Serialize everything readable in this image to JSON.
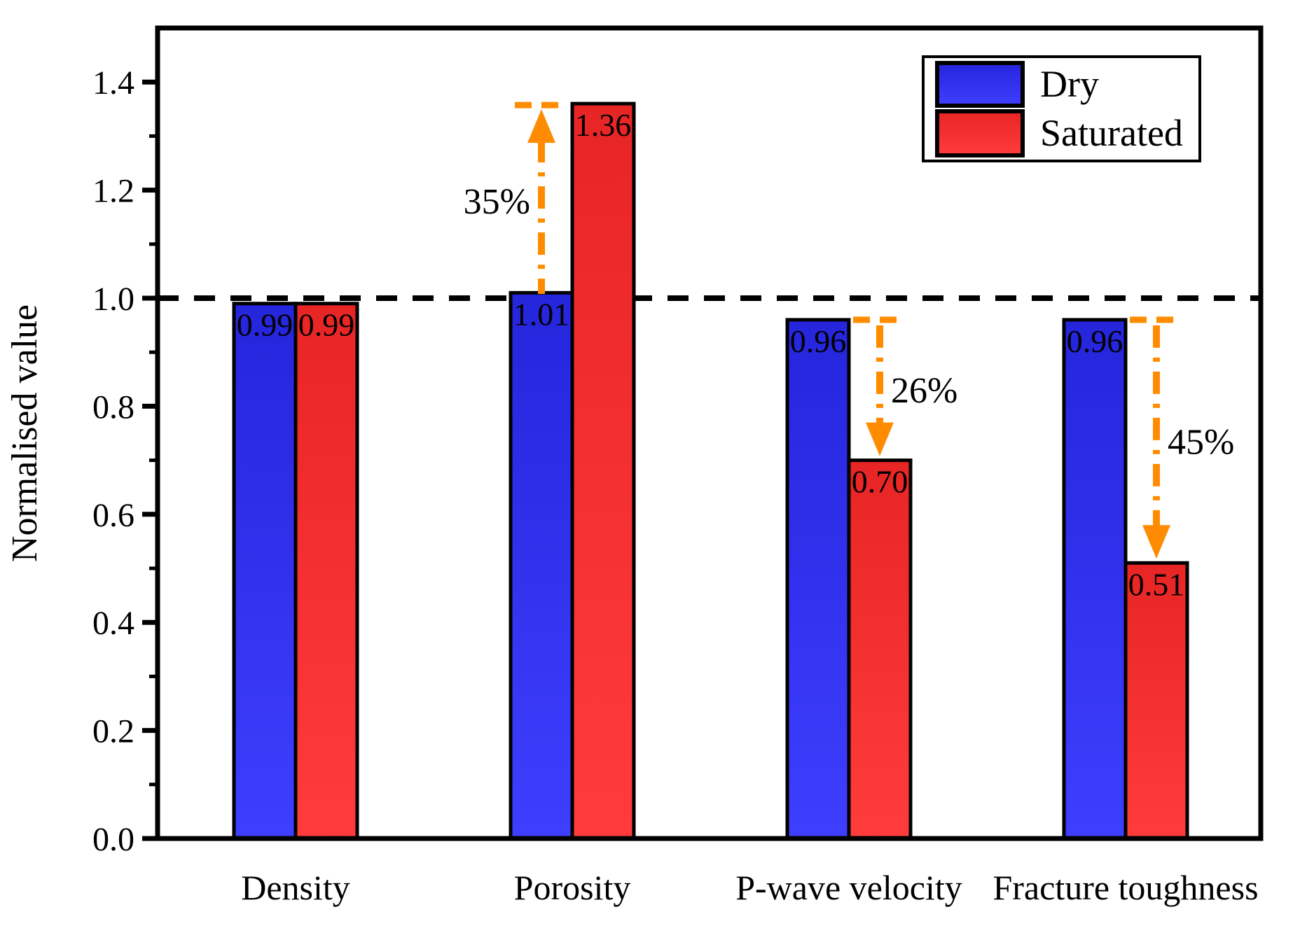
{
  "y_axis": {
    "title": "Normalised value",
    "tick_labels": [
      "0.0",
      "0.2",
      "0.4",
      "0.6",
      "0.8",
      "1.0",
      "1.2",
      "1.4"
    ],
    "min": 0.0,
    "max": 1.5,
    "major_step": 0.2,
    "minor_step": 0.1
  },
  "x_axis": {
    "categories": [
      "Density",
      "Porosity",
      "P-wave velocity",
      "Fracture toughness"
    ]
  },
  "legend": {
    "entries": [
      {
        "label": "Dry",
        "color_key": "dry"
      },
      {
        "label": "Saturated",
        "color_key": "saturated"
      }
    ],
    "position": "top-right"
  },
  "reference_line": {
    "value": 1.0,
    "style": "dashed",
    "color": "#000000"
  },
  "colors": {
    "dry_top": "#2525DC",
    "dry_bottom": "#3E3EFF",
    "saturated_top": "#E82525",
    "saturated_bottom": "#FF3B3B",
    "value_label": "#00CC44",
    "annotation": "#FF8C00",
    "axis": "#000000"
  },
  "chart_data": {
    "type": "bar",
    "title": "",
    "xlabel": "",
    "ylabel": "Normalised value",
    "ylim": [
      0,
      1.5
    ],
    "grid": false,
    "legend_position": "top-right",
    "categories": [
      "Density",
      "Porosity",
      "P-wave velocity",
      "Fracture toughness"
    ],
    "series": [
      {
        "name": "Dry",
        "values": [
          0.99,
          1.01,
          0.96,
          0.96
        ]
      },
      {
        "name": "Saturated",
        "values": [
          0.99,
          1.36,
          0.7,
          0.51
        ]
      }
    ],
    "value_labels": [
      [
        "0.99",
        "1.01",
        "0.96",
        "0.96"
      ],
      [
        "0.99",
        "1.36",
        "0.70",
        "0.51"
      ]
    ],
    "reference_value": 1.0,
    "annotations": [
      {
        "category": "Porosity",
        "text": "35%",
        "direction": "up",
        "from": 1.0,
        "to": 1.36,
        "over": "dry",
        "label_side": "left"
      },
      {
        "category": "P-wave velocity",
        "text": "26%",
        "direction": "down",
        "from": 0.96,
        "to": 0.7,
        "over": "saturated",
        "label_side": "right"
      },
      {
        "category": "Fracture toughness",
        "text": "45%",
        "direction": "down",
        "from": 0.96,
        "to": 0.51,
        "over": "saturated",
        "label_side": "right"
      }
    ]
  }
}
